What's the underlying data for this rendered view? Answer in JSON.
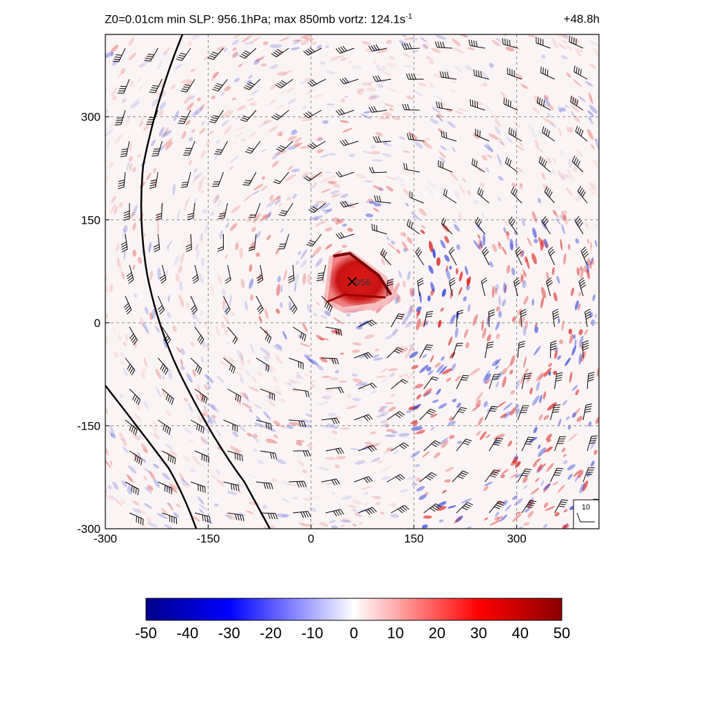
{
  "header": {
    "title": "Z0=0.01cm  min SLP: 956.1hPa; max 850mb vortz: 124.1s",
    "title_superscript": "-1",
    "forecast_hour": "+48.8h"
  },
  "chart_data": {
    "type": "heatmap",
    "x_ticks": [
      "-300",
      "-150",
      "0",
      "150",
      "300"
    ],
    "y_ticks": [
      "-300",
      "-150",
      "0",
      "150",
      "300"
    ],
    "xlim": [
      -300,
      420
    ],
    "ylim": [
      -300,
      420
    ],
    "grid": true,
    "grid_style": "dashed",
    "field_name": "850mb vorticity",
    "center_marker": {
      "x": 60,
      "y": 60,
      "label": "956"
    },
    "max_vorticity": 124.1,
    "min_slp_hpa": 956.1,
    "wind_barb_reference": {
      "label": "10"
    },
    "colorbar": {
      "min": -50,
      "max": 50,
      "tick_labels": [
        "-50",
        "-40",
        "-30",
        "-20",
        "-10",
        "0",
        "10",
        "20",
        "30",
        "40",
        "50"
      ],
      "colors": [
        "#00008b",
        "#0000ff",
        "#ffffff",
        "#ff0000",
        "#8b0000"
      ]
    }
  }
}
